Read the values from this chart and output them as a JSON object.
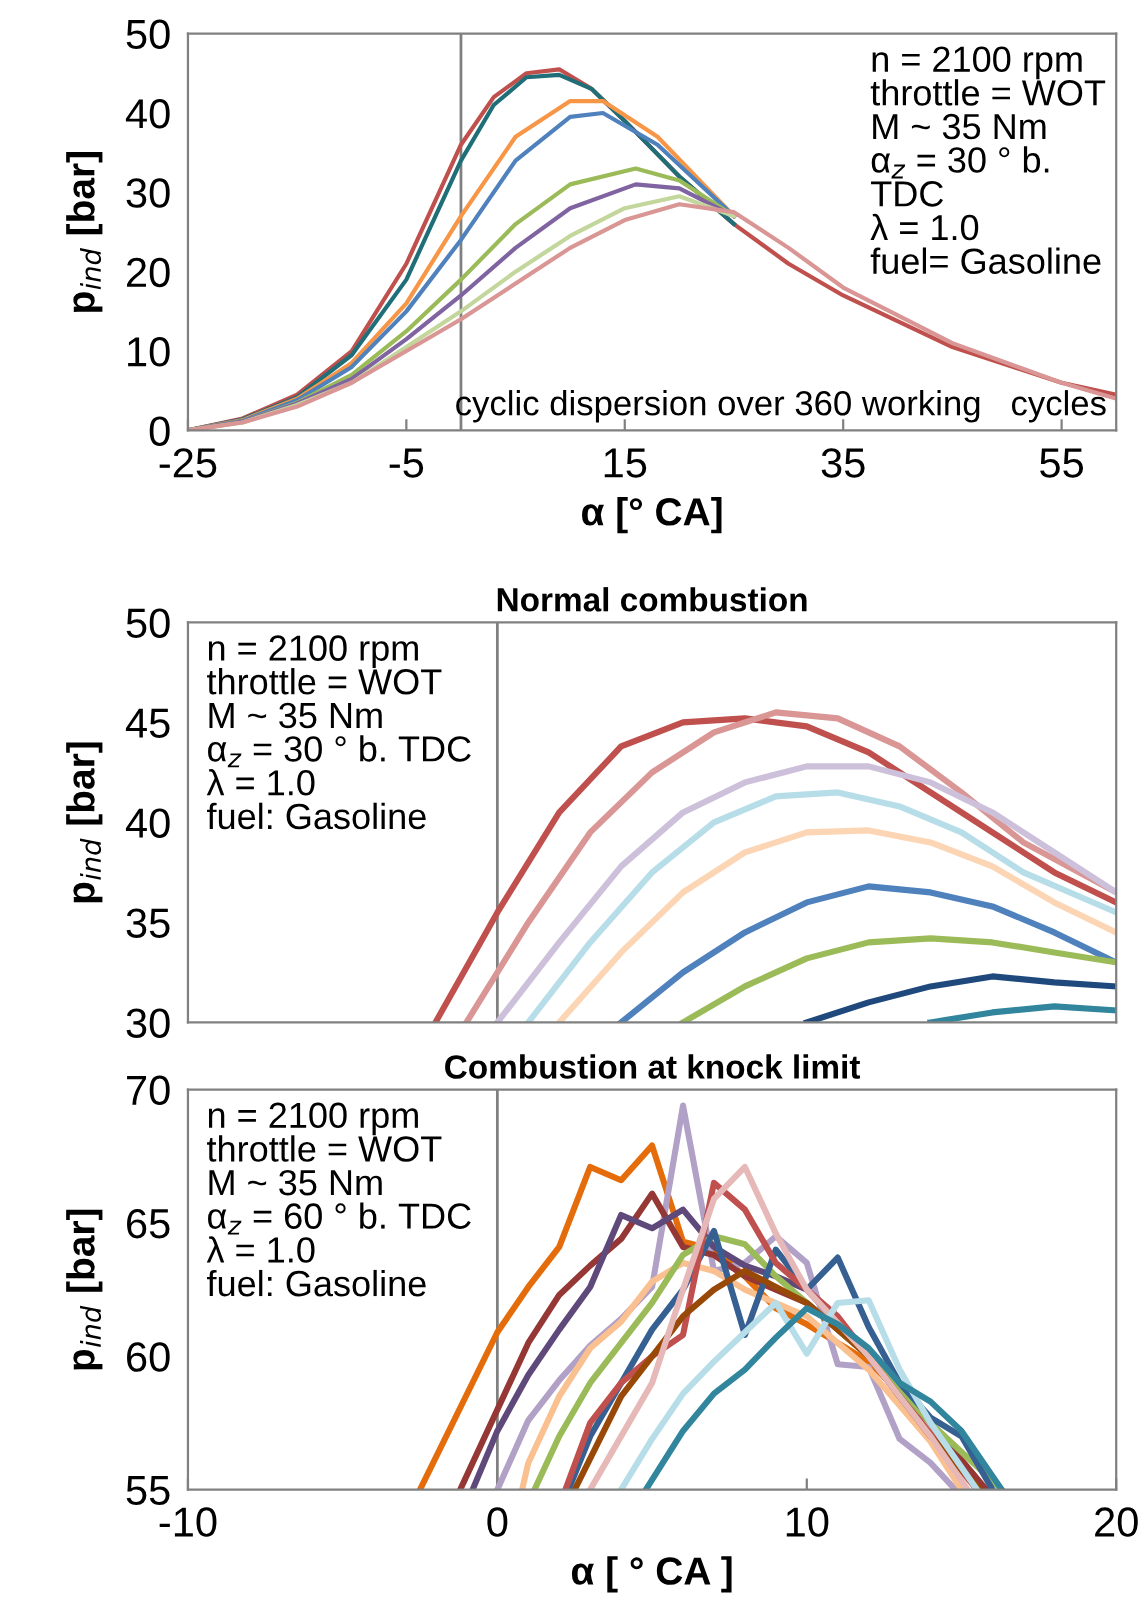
{
  "chart_data": [
    {
      "type": "line",
      "xlabel": "α [° CA]",
      "ylabel": "p$_{ind}$ [bar]",
      "xlim": [
        -25,
        60
      ],
      "xticks": [
        -25,
        -5,
        15,
        35,
        55
      ],
      "ylim": [
        0,
        50
      ],
      "yticks": [
        0,
        10,
        20,
        30,
        40,
        50
      ],
      "grid": false,
      "annotations": [
        "n = 2100 rpm\nthrottle = WOT\nM ~ 35 Nm\nα$_{z}$ = 30 ° b.\nTDC\nλ = 1.0\nfuel= Gasoline",
        "cyclic dispersion over 360 working   cycles"
      ],
      "ref_lines": [
        {
          "axis": "x",
          "value": 0,
          "color": "#808080"
        }
      ],
      "series": [
        {
          "color": "#c0504d",
          "x": [
            -25,
            -20,
            -15,
            -10,
            -5,
            -2,
            0,
            3,
            6,
            9,
            12,
            15,
            20,
            25,
            30,
            35,
            45,
            55,
            60
          ],
          "values": [
            0,
            1.5,
            4.5,
            10,
            21,
            30,
            36,
            42,
            45,
            45.5,
            43,
            39,
            32,
            26,
            21,
            17,
            10.5,
            6,
            4.5
          ]
        },
        {
          "color": "#1f6e78",
          "x": [
            -25,
            -20,
            -15,
            -10,
            -5,
            -2,
            0,
            3,
            6,
            9,
            12,
            15,
            20,
            25
          ],
          "values": [
            0,
            1.4,
            4.2,
            9.5,
            19,
            28,
            34,
            41,
            44.5,
            44.8,
            43,
            39,
            32,
            26
          ]
        },
        {
          "color": "#f79646",
          "x": [
            -25,
            -20,
            -15,
            -10,
            -5,
            0,
            5,
            10,
            13,
            18,
            25
          ],
          "values": [
            0,
            1.3,
            4,
            8.5,
            16,
            27,
            37,
            41.5,
            41.5,
            37,
            27
          ]
        },
        {
          "color": "#4f81bd",
          "x": [
            -25,
            -20,
            -15,
            -10,
            -5,
            0,
            5,
            10,
            13,
            18,
            25
          ],
          "values": [
            0,
            1.2,
            3.8,
            8,
            15,
            24,
            34,
            39.5,
            40,
            36,
            27
          ]
        },
        {
          "color": "#9bbb59",
          "x": [
            -25,
            -20,
            -15,
            -10,
            -5,
            0,
            5,
            10,
            16,
            20,
            25
          ],
          "values": [
            0,
            1.1,
            3.5,
            7,
            12.5,
            19,
            26,
            31,
            33,
            31.5,
            27
          ]
        },
        {
          "color": "#8064a2",
          "x": [
            -25,
            -20,
            -15,
            -10,
            -5,
            0,
            5,
            10,
            16,
            20,
            25
          ],
          "values": [
            0,
            1.1,
            3.4,
            6.5,
            11.5,
            17,
            23,
            28,
            31,
            30.5,
            27
          ]
        },
        {
          "color": "#c3d69b",
          "x": [
            -25,
            -20,
            -15,
            -10,
            -5,
            0,
            5,
            10,
            15,
            20,
            25
          ],
          "values": [
            0,
            1,
            3.2,
            6,
            10.5,
            15,
            20,
            24.5,
            28,
            29.5,
            27
          ]
        },
        {
          "color": "#d99694",
          "x": [
            -25,
            -20,
            -15,
            -10,
            -5,
            0,
            5,
            10,
            15,
            20,
            25,
            30,
            35,
            45,
            55,
            60
          ],
          "values": [
            0,
            1,
            3,
            6,
            10,
            14,
            18.5,
            23,
            26.5,
            28.5,
            27.5,
            23,
            18,
            11,
            6,
            4
          ]
        }
      ]
    },
    {
      "type": "line",
      "title": "Normal combustion",
      "ylabel": "p$_{ind}$ [bar]",
      "xlim": [
        -10,
        20
      ],
      "ylim": [
        30,
        50
      ],
      "yticks": [
        30,
        35,
        40,
        45,
        50
      ],
      "tick_labels": "y",
      "grid": false,
      "annotations": [
        "n = 2100 rpm\nthrottle = WOT\nM ~ 35 Nm\nα$_{z}$ = 30 ° b. TDC\nλ = 1.0\nfuel: Gasoline"
      ],
      "ref_lines": [
        {
          "axis": "x",
          "value": 0,
          "color": "#808080"
        }
      ],
      "series": [
        {
          "color": "#c0504d",
          "x": [
            -2,
            0,
            2,
            4,
            6,
            8,
            10,
            12,
            14,
            16,
            18,
            20
          ],
          "values": [
            30,
            35.5,
            40.5,
            43.8,
            45,
            45.2,
            44.8,
            43.5,
            41.5,
            39.5,
            37.5,
            36
          ]
        },
        {
          "color": "#d99694",
          "x": [
            -1,
            1,
            3,
            5,
            7,
            9,
            11,
            13,
            15,
            17,
            20
          ],
          "values": [
            30,
            35,
            39.5,
            42.5,
            44.5,
            45.5,
            45.2,
            43.8,
            41.5,
            39,
            36.5
          ]
        },
        {
          "color": "#ccc0da",
          "x": [
            0,
            2,
            4,
            6,
            8,
            10,
            12,
            14,
            16,
            18,
            20
          ],
          "values": [
            30,
            34,
            37.8,
            40.5,
            42,
            42.8,
            42.8,
            42,
            40.5,
            38.5,
            36.5
          ]
        },
        {
          "color": "#b7dee8",
          "x": [
            1,
            3,
            5,
            7,
            9,
            11,
            13,
            15,
            17,
            20
          ],
          "values": [
            30,
            34,
            37.5,
            40,
            41.3,
            41.5,
            40.8,
            39.5,
            37.5,
            35.5
          ]
        },
        {
          "color": "#fcd5b4",
          "x": [
            2,
            4,
            6,
            8,
            10,
            12,
            14,
            16,
            18,
            20
          ],
          "values": [
            30,
            33.5,
            36.5,
            38.5,
            39.5,
            39.6,
            39,
            37.8,
            36,
            34.5
          ]
        },
        {
          "color": "#4f81bd",
          "x": [
            4,
            6,
            8,
            10,
            12,
            14,
            16,
            18,
            20
          ],
          "values": [
            30,
            32.5,
            34.5,
            36,
            36.8,
            36.5,
            35.8,
            34.5,
            33
          ]
        },
        {
          "color": "#9bbb59",
          "x": [
            6,
            8,
            10,
            12,
            14,
            16,
            18,
            20
          ],
          "values": [
            30,
            31.8,
            33.2,
            34,
            34.2,
            34,
            33.5,
            33
          ]
        },
        {
          "color": "#1f497d",
          "x": [
            10,
            12,
            14,
            16,
            18,
            20
          ],
          "values": [
            30,
            31,
            31.8,
            32.3,
            32,
            31.8
          ]
        },
        {
          "color": "#31859c",
          "x": [
            14,
            16,
            18,
            20
          ],
          "values": [
            30,
            30.5,
            30.8,
            30.6
          ]
        }
      ]
    },
    {
      "type": "line",
      "title": "Combustion at knock limit",
      "xlabel": "α [ ° CA ]",
      "ylabel": "p$_{ind}$ [bar]",
      "xlim": [
        -10,
        20
      ],
      "xticks": [
        -10,
        0,
        10,
        20
      ],
      "ylim": [
        55,
        70
      ],
      "yticks": [
        55,
        60,
        65,
        70
      ],
      "grid": false,
      "annotations": [
        "n = 2100 rpm\nthrottle = WOT\nM ~ 35 Nm\nα$_{z}$ = 60 ° b. TDC\nλ = 1.0\nfuel: Gasoline"
      ],
      "ref_lines": [
        {
          "axis": "x",
          "value": 0,
          "color": "#808080"
        }
      ],
      "series": [
        {
          "color": "#e46c0a",
          "x": [
            -2.5,
            0,
            1,
            2,
            3,
            4,
            5,
            6,
            7,
            8,
            9,
            10,
            12,
            14,
            15.5
          ],
          "values": [
            55,
            60.9,
            62.6,
            64.1,
            67.1,
            66.6,
            67.9,
            64.3,
            64,
            63,
            61.8,
            61.2,
            59.8,
            57.5,
            55
          ]
        },
        {
          "color": "#b2a1c7",
          "x": [
            0,
            1,
            2,
            3,
            4,
            5,
            6,
            7,
            8,
            9,
            10,
            11,
            12,
            13,
            14,
            14.8
          ],
          "values": [
            55,
            57.6,
            59.1,
            60.4,
            61.4,
            62.6,
            69.4,
            63.2,
            63.5,
            64.5,
            63.5,
            59.7,
            59.6,
            56.9,
            56,
            55
          ]
        },
        {
          "color": "#953735",
          "x": [
            -1.2,
            0,
            1,
            2,
            3,
            4,
            5,
            6,
            7,
            8,
            9,
            10,
            12,
            14,
            15.8
          ],
          "values": [
            55,
            58,
            60.5,
            62.3,
            63.4,
            64.4,
            66.1,
            64.1,
            63.8,
            63,
            62.5,
            62,
            60,
            57.5,
            55
          ]
        },
        {
          "color": "#5f497a",
          "x": [
            -0.8,
            0,
            1,
            2,
            3,
            4,
            5,
            6,
            7,
            8,
            9,
            10,
            12,
            14,
            15.5
          ],
          "values": [
            55,
            57.2,
            59.3,
            61,
            62.6,
            65.3,
            64.8,
            65.5,
            64.1,
            63.4,
            63,
            62.5,
            60,
            57.5,
            55
          ]
        },
        {
          "color": "#fac090",
          "x": [
            0.8,
            1,
            2,
            3,
            4,
            5,
            6,
            7,
            8,
            9,
            10,
            12,
            14,
            15
          ],
          "values": [
            55,
            56,
            58.5,
            60.3,
            61.3,
            62.8,
            63.5,
            63.2,
            62.5,
            62,
            61.5,
            59.5,
            56.8,
            55
          ]
        },
        {
          "color": "#9bbb59",
          "x": [
            1.2,
            2,
            3,
            4,
            5,
            6,
            7,
            8,
            9,
            10,
            12,
            14,
            16.3
          ],
          "values": [
            55,
            57,
            59,
            60.5,
            62,
            63.8,
            64.5,
            64.2,
            63,
            62,
            60,
            57.5,
            55
          ]
        },
        {
          "color": "#376092",
          "x": [
            2.3,
            3,
            4,
            5,
            6,
            7,
            8,
            9,
            10,
            11,
            12,
            13,
            14,
            15,
            16
          ],
          "values": [
            55,
            57,
            59,
            61,
            62.5,
            64.7,
            60.8,
            64,
            62.5,
            63.7,
            61.1,
            59,
            57.7,
            57,
            55
          ]
        },
        {
          "color": "#c0504d",
          "x": [
            2.2,
            3,
            4,
            5,
            6,
            7,
            8,
            9,
            10,
            11,
            12,
            13,
            15.5
          ],
          "values": [
            55,
            57.5,
            59,
            60,
            60.8,
            66.5,
            65.5,
            63.5,
            62.5,
            61.5,
            60,
            58.5,
            55
          ]
        },
        {
          "color": "#984807",
          "x": [
            2.5,
            4,
            5,
            6,
            7,
            8,
            9,
            10,
            12,
            14,
            15.6
          ],
          "values": [
            55,
            58.5,
            60,
            61.5,
            62.5,
            63.2,
            62.6,
            62,
            60,
            57,
            55
          ]
        },
        {
          "color": "#e6b9b8",
          "x": [
            3,
            5,
            6,
            7,
            8,
            9,
            10,
            12,
            14,
            15.2
          ],
          "values": [
            55,
            59,
            62.5,
            65.9,
            67.1,
            64.6,
            62.5,
            60,
            57,
            55
          ]
        },
        {
          "color": "#b7dee8",
          "x": [
            4,
            5,
            6,
            7,
            8,
            9,
            10,
            11,
            12,
            13,
            14,
            15.5
          ],
          "values": [
            55,
            56.9,
            58.6,
            59.8,
            60.9,
            62,
            60.1,
            62,
            62.1,
            59.5,
            57.5,
            55
          ]
        },
        {
          "color": "#31859c",
          "x": [
            4.8,
            6,
            7,
            8,
            9,
            10,
            11,
            12,
            13,
            14,
            15,
            16.3
          ],
          "values": [
            55,
            57.2,
            58.6,
            59.5,
            60.7,
            61.8,
            61.2,
            60.3,
            59,
            58.3,
            57.2,
            55
          ]
        }
      ]
    }
  ]
}
